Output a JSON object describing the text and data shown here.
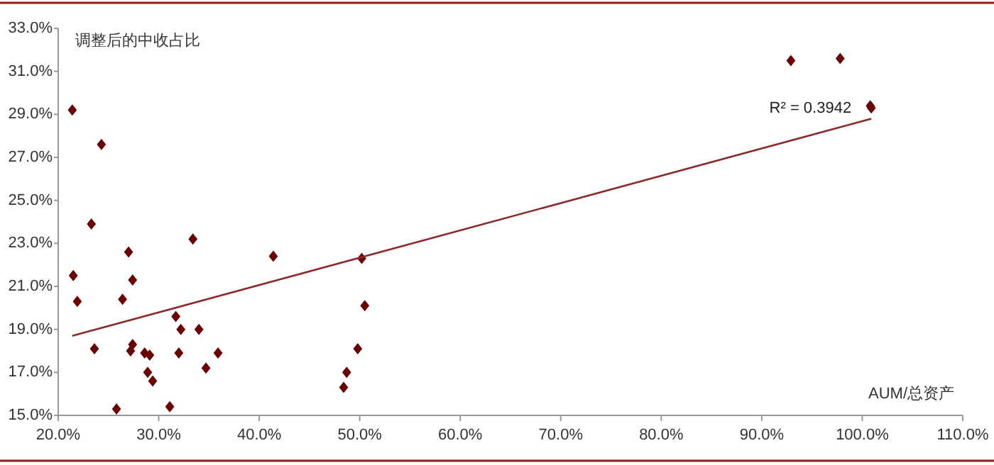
{
  "chart_data": {
    "type": "scatter",
    "ylabel": "调整后的中收占比",
    "xlabel": "AUM/总资产",
    "xlim": [
      20,
      110
    ],
    "ylim": [
      15,
      33
    ],
    "xticks": [
      {
        "value": 20,
        "label": "20.0%"
      },
      {
        "value": 30,
        "label": "30.0%"
      },
      {
        "value": 40,
        "label": "40.0%"
      },
      {
        "value": 50,
        "label": "50.0%"
      },
      {
        "value": 60,
        "label": "60.0%"
      },
      {
        "value": 70,
        "label": "70.0%"
      },
      {
        "value": 80,
        "label": "80.0%"
      },
      {
        "value": 90,
        "label": "90.0%"
      },
      {
        "value": 100,
        "label": "100.0%"
      },
      {
        "value": 110,
        "label": "110.0%"
      }
    ],
    "yticks": [
      {
        "value": 15,
        "label": "15.0%"
      },
      {
        "value": 17,
        "label": "17.0%"
      },
      {
        "value": 19,
        "label": "19.0%"
      },
      {
        "value": 21,
        "label": "21.0%"
      },
      {
        "value": 23,
        "label": "23.0%"
      },
      {
        "value": 25,
        "label": "25.0%"
      },
      {
        "value": 27,
        "label": "27.0%"
      },
      {
        "value": 29,
        "label": "29.0%"
      },
      {
        "value": 31,
        "label": "31.0%"
      },
      {
        "value": 33,
        "label": "33.0%"
      }
    ],
    "grid": false,
    "series": [
      {
        "type": "scatter",
        "color": "#6b0000",
        "marker": "diamond",
        "x": [
          21.4,
          24.3,
          23.3,
          27.0,
          33.4,
          41.4,
          21.5,
          27.4,
          21.9,
          26.4,
          31.7,
          32.2,
          34.0,
          23.6,
          27.4,
          27.2,
          28.6,
          29.1,
          32.0,
          35.9,
          28.9,
          34.7,
          29.4,
          25.8,
          31.1,
          50.2,
          50.5,
          49.8,
          48.7,
          48.4,
          92.9,
          97.8,
          100.8,
          100.9
        ],
        "values": [
          29.2,
          27.6,
          23.9,
          22.6,
          23.2,
          22.4,
          21.5,
          21.3,
          20.3,
          20.4,
          19.6,
          19.0,
          19.0,
          18.1,
          18.3,
          18.0,
          17.9,
          17.8,
          17.9,
          17.9,
          17.0,
          17.2,
          16.6,
          15.3,
          15.4,
          22.3,
          20.1,
          18.1,
          17.0,
          16.3,
          31.5,
          31.6,
          29.4,
          29.3
        ]
      },
      {
        "type": "line",
        "color": "#8b2a2a",
        "marker": "none",
        "line_style": "solid",
        "x": [
          21.4,
          100.9
        ],
        "values": [
          18.7,
          28.8
        ]
      }
    ],
    "annotations": [
      {
        "text": "R² = 0.3942",
        "x": 100.9,
        "y": 28.8
      }
    ]
  }
}
